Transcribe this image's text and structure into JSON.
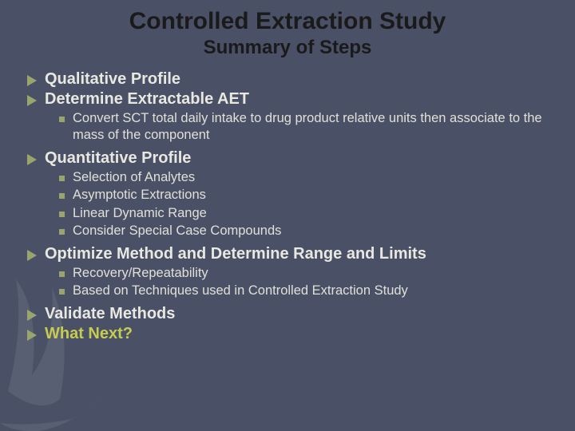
{
  "colors": {
    "background": "#4a5166",
    "title_text": "#1a1a1a",
    "body_text": "#e0e0d8",
    "bullet_triangle": "#9aa56e",
    "bullet_square": "#9aa56e",
    "highlight_text": "#c6cc4f"
  },
  "typography": {
    "title_fontsize": 30,
    "subtitle_fontsize": 24,
    "top_fontsize": 20,
    "sub_fontsize": 16.5,
    "font_family": "Verdana"
  },
  "title": "Controlled Extraction Study",
  "subtitle": "Summary of Steps",
  "items": [
    {
      "label": "Qualitative Profile",
      "highlight": false,
      "sub": []
    },
    {
      "label": "Determine Extractable AET",
      "highlight": false,
      "sub": [
        "Convert SCT total daily intake to drug product relative units then associate to the mass of the component"
      ]
    },
    {
      "label": "Quantitative Profile",
      "highlight": false,
      "sub": [
        "Selection of Analytes",
        "Asymptotic Extractions",
        "Linear Dynamic Range",
        "Consider Special Case Compounds"
      ]
    },
    {
      "label": "Optimize Method and Determine Range and Limits",
      "highlight": false,
      "sub": [
        "Recovery/Repeatability",
        "Based on Techniques used in Controlled Extraction Study"
      ]
    },
    {
      "label": "Validate Methods",
      "highlight": false,
      "sub": []
    },
    {
      "label": " What Next?",
      "highlight": true,
      "sub": []
    }
  ]
}
